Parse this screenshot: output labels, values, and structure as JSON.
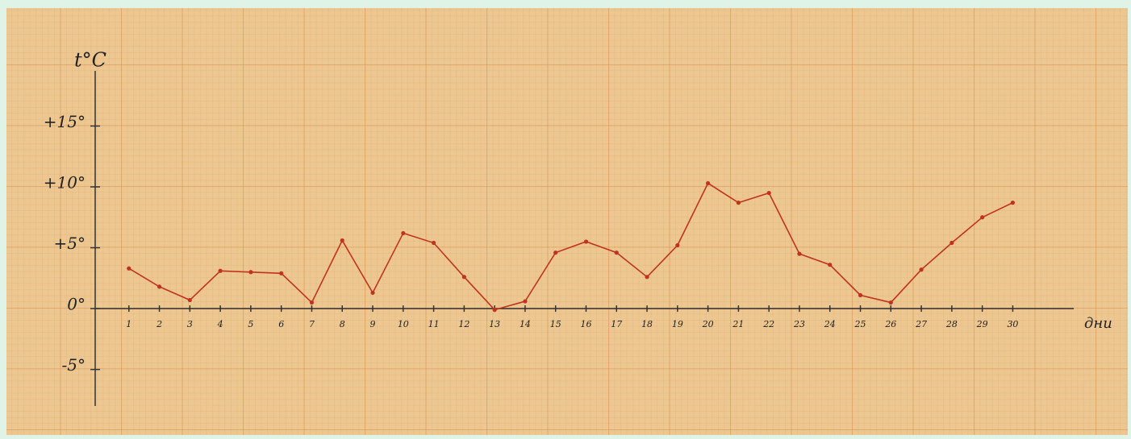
{
  "chart_data": {
    "type": "line",
    "y_label": "t°C",
    "x_label": "дни",
    "x": [
      1,
      2,
      3,
      4,
      5,
      6,
      7,
      8,
      9,
      10,
      11,
      12,
      13,
      14,
      15,
      16,
      17,
      18,
      19,
      20,
      21,
      22,
      23,
      24,
      25,
      26,
      27,
      28,
      29,
      30
    ],
    "values": [
      3.3,
      1.8,
      0.7,
      3.1,
      3.0,
      2.9,
      0.5,
      5.6,
      1.3,
      6.2,
      5.4,
      2.6,
      -0.1,
      0.6,
      4.6,
      5.5,
      4.6,
      2.6,
      5.2,
      10.3,
      8.7,
      9.5,
      4.5,
      3.6,
      1.1,
      0.5,
      3.2,
      5.4,
      7.5,
      8.7
    ],
    "color": "#c0341f",
    "xlim": [
      0,
      32
    ],
    "xticks": [
      1,
      2,
      3,
      4,
      5,
      6,
      7,
      8,
      9,
      10,
      11,
      12,
      13,
      14,
      15,
      16,
      17,
      18,
      19,
      20,
      21,
      22,
      23,
      24,
      25,
      26,
      27,
      28,
      29,
      30
    ],
    "ylim": [
      -8,
      19
    ],
    "yticks": [
      {
        "value": 15,
        "label": "+15°"
      },
      {
        "value": 10,
        "label": "+10°"
      },
      {
        "value": 5,
        "label": "+5°"
      },
      {
        "value": 0,
        "label": "0°"
      },
      {
        "value": -5,
        "label": "-5°"
      }
    ],
    "grid": true
  }
}
